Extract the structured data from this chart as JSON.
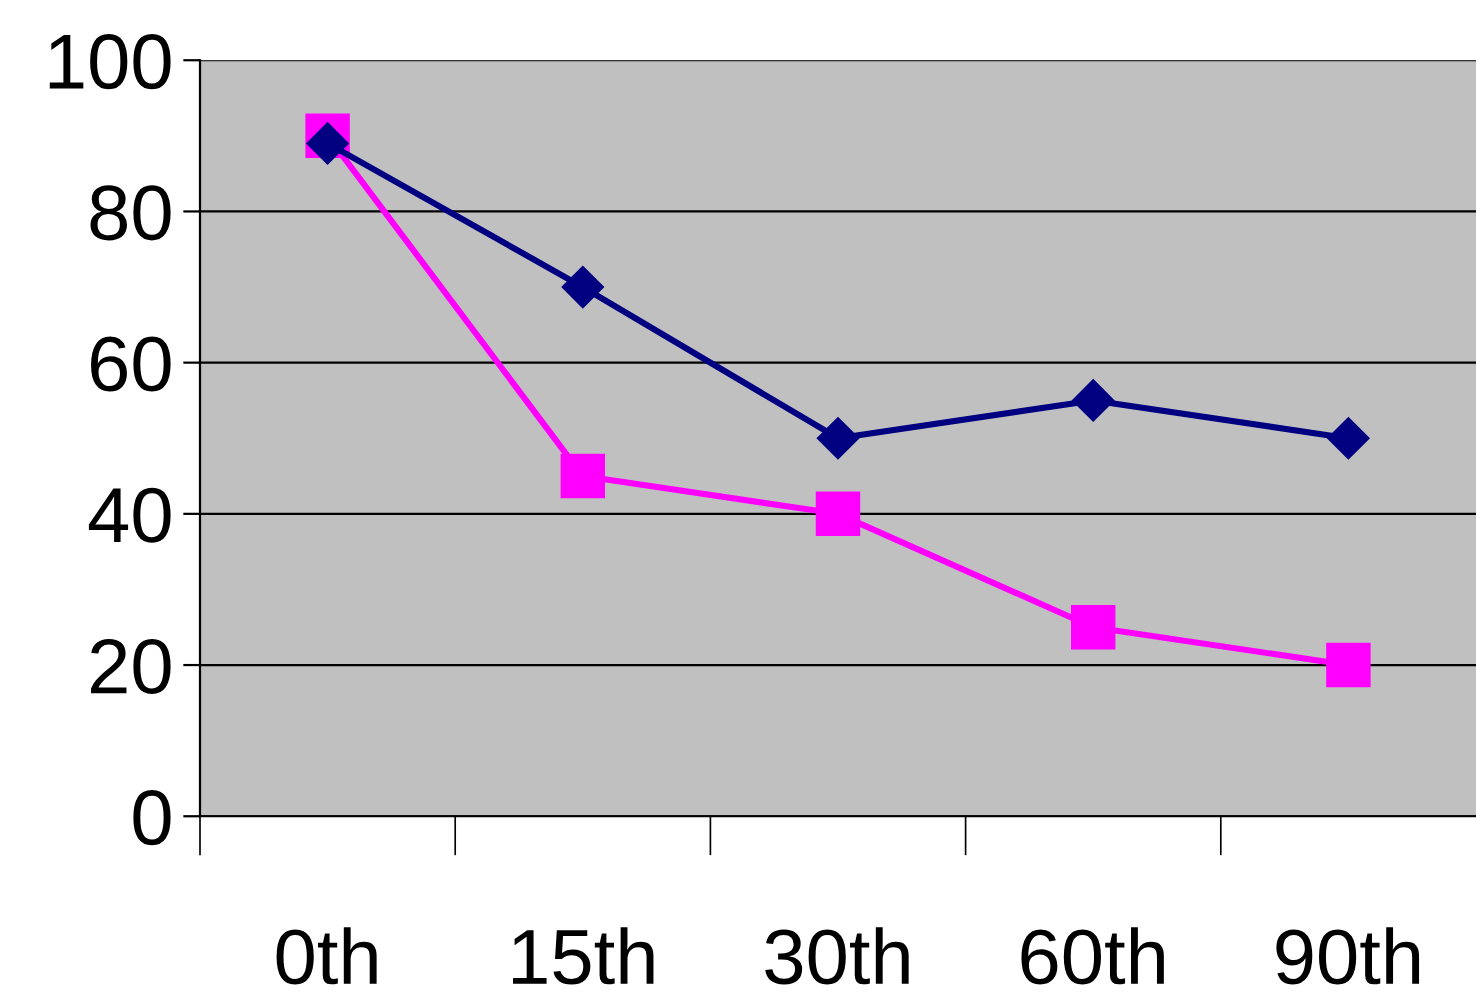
{
  "chart_data": {
    "type": "line",
    "categories": [
      "0th",
      "15th",
      "30th",
      "60th",
      "90th"
    ],
    "series": [
      {
        "color": "#000080",
        "values": [
          89,
          70,
          50,
          55,
          50
        ],
        "marker": "diamond"
      },
      {
        "color": "#ff00ff",
        "values": [
          90,
          45,
          40,
          25,
          20
        ],
        "marker": "square"
      }
    ],
    "ylim": [
      0,
      100
    ],
    "yticks": [
      0,
      20,
      40,
      60,
      80,
      100
    ],
    "grid": "y",
    "legend": false,
    "line_style": "solid"
  }
}
